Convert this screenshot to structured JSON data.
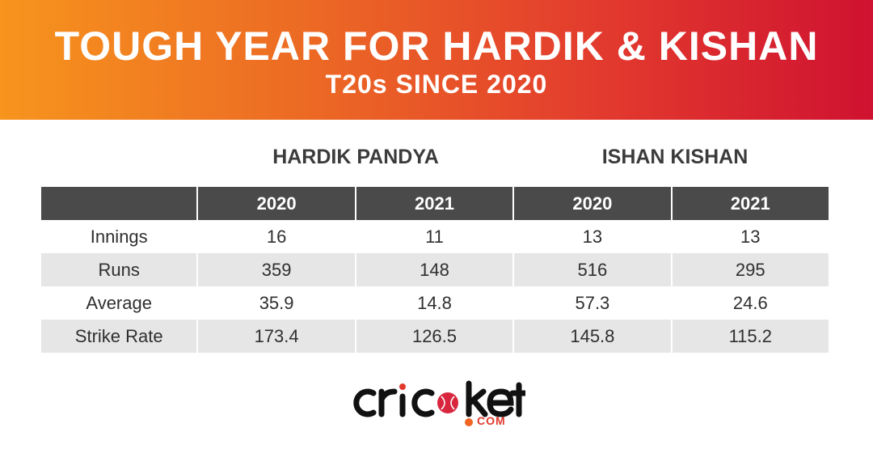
{
  "banner": {
    "title": "TOUGH YEAR FOR HARDIK & KISHAN",
    "subtitle": "T20s SINCE 2020"
  },
  "players": [
    {
      "name": "HARDIK PANDYA"
    },
    {
      "name": "ISHAN KISHAN"
    }
  ],
  "table": {
    "years": [
      "2020",
      "2021",
      "2020",
      "2021"
    ],
    "rows": [
      {
        "label": "Innings",
        "values": [
          "16",
          "11",
          "13",
          "13"
        ]
      },
      {
        "label": "Runs",
        "values": [
          "359",
          "148",
          "516",
          "295"
        ]
      },
      {
        "label": "Average",
        "values": [
          "35.9",
          "14.8",
          "57.3",
          "24.6"
        ]
      },
      {
        "label": "Strike Rate",
        "values": [
          "173.4",
          "126.5",
          "145.8",
          "115.2"
        ]
      }
    ]
  },
  "logo": {
    "brand": "cricket",
    "suffix": "COM"
  },
  "colors": {
    "banner_start": "#f7941d",
    "banner_end": "#cf1230",
    "header_bg": "#4a4a4a",
    "row_shade": "#e6e6e6"
  }
}
